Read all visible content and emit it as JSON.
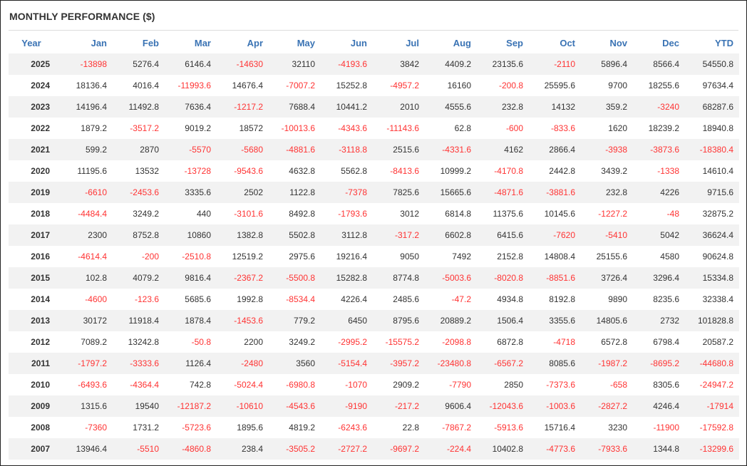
{
  "title": "MONTHLY PERFORMANCE ($)",
  "colors": {
    "header": "#3a73b4",
    "negative": "#ff3333",
    "positive": "#333333",
    "stripe": "#f2f2f2"
  },
  "columns": [
    "Year",
    "Jan",
    "Feb",
    "Mar",
    "Apr",
    "May",
    "Jun",
    "Jul",
    "Aug",
    "Sep",
    "Oct",
    "Nov",
    "Dec",
    "YTD"
  ],
  "rows": [
    [
      "2025",
      "-13898",
      "5276.4",
      "6146.4",
      "-14630",
      "32110",
      "-4193.6",
      "3842",
      "4409.2",
      "23135.6",
      "-2110",
      "5896.4",
      "8566.4",
      "54550.8"
    ],
    [
      "2024",
      "18136.4",
      "4016.4",
      "-11993.6",
      "14676.4",
      "-7007.2",
      "15252.8",
      "-4957.2",
      "16160",
      "-200.8",
      "25595.6",
      "9700",
      "18255.6",
      "97634.4"
    ],
    [
      "2023",
      "14196.4",
      "11492.8",
      "7636.4",
      "-1217.2",
      "7688.4",
      "10441.2",
      "2010",
      "4555.6",
      "232.8",
      "14132",
      "359.2",
      "-3240",
      "68287.6"
    ],
    [
      "2022",
      "1879.2",
      "-3517.2",
      "9019.2",
      "18572",
      "-10013.6",
      "-4343.6",
      "-11143.6",
      "62.8",
      "-600",
      "-833.6",
      "1620",
      "18239.2",
      "18940.8"
    ],
    [
      "2021",
      "599.2",
      "2870",
      "-5570",
      "-5680",
      "-4881.6",
      "-3118.8",
      "2515.6",
      "-4331.6",
      "4162",
      "2866.4",
      "-3938",
      "-3873.6",
      "-18380.4"
    ],
    [
      "2020",
      "11195.6",
      "13532",
      "-13728",
      "-9543.6",
      "4632.8",
      "5562.8",
      "-8413.6",
      "10999.2",
      "-4170.8",
      "2442.8",
      "3439.2",
      "-1338",
      "14610.4"
    ],
    [
      "2019",
      "-6610",
      "-2453.6",
      "3335.6",
      "2502",
      "1122.8",
      "-7378",
      "7825.6",
      "15665.6",
      "-4871.6",
      "-3881.6",
      "232.8",
      "4226",
      "9715.6"
    ],
    [
      "2018",
      "-4484.4",
      "3249.2",
      "440",
      "-3101.6",
      "8492.8",
      "-1793.6",
      "3012",
      "6814.8",
      "11375.6",
      "10145.6",
      "-1227.2",
      "-48",
      "32875.2"
    ],
    [
      "2017",
      "2300",
      "8752.8",
      "10860",
      "1382.8",
      "5502.8",
      "3112.8",
      "-317.2",
      "6602.8",
      "6415.6",
      "-7620",
      "-5410",
      "5042",
      "36624.4"
    ],
    [
      "2016",
      "-4614.4",
      "-200",
      "-2510.8",
      "12519.2",
      "2975.6",
      "19216.4",
      "9050",
      "7492",
      "2152.8",
      "14808.4",
      "25155.6",
      "4580",
      "90624.8"
    ],
    [
      "2015",
      "102.8",
      "4079.2",
      "9816.4",
      "-2367.2",
      "-5500.8",
      "15282.8",
      "8774.8",
      "-5003.6",
      "-8020.8",
      "-8851.6",
      "3726.4",
      "3296.4",
      "15334.8"
    ],
    [
      "2014",
      "-4600",
      "-123.6",
      "5685.6",
      "1992.8",
      "-8534.4",
      "4226.4",
      "2485.6",
      "-47.2",
      "4934.8",
      "8192.8",
      "9890",
      "8235.6",
      "32338.4"
    ],
    [
      "2013",
      "30172",
      "11918.4",
      "1878.4",
      "-1453.6",
      "779.2",
      "6450",
      "8795.6",
      "20889.2",
      "1506.4",
      "3355.6",
      "14805.6",
      "2732",
      "101828.8"
    ],
    [
      "2012",
      "7089.2",
      "13242.8",
      "-50.8",
      "2200",
      "3249.2",
      "-2995.2",
      "-15575.2",
      "-2098.8",
      "6872.8",
      "-4718",
      "6572.8",
      "6798.4",
      "20587.2"
    ],
    [
      "2011",
      "-1797.2",
      "-3333.6",
      "1126.4",
      "-2480",
      "3560",
      "-5154.4",
      "-3957.2",
      "-23480.8",
      "-6567.2",
      "8085.6",
      "-1987.2",
      "-8695.2",
      "-44680.8"
    ],
    [
      "2010",
      "-6493.6",
      "-4364.4",
      "742.8",
      "-5024.4",
      "-6980.8",
      "-1070",
      "2909.2",
      "-7790",
      "2850",
      "-7373.6",
      "-658",
      "8305.6",
      "-24947.2"
    ],
    [
      "2009",
      "1315.6",
      "19540",
      "-12187.2",
      "-10610",
      "-4543.6",
      "-9190",
      "-217.2",
      "9606.4",
      "-12043.6",
      "-1003.6",
      "-2827.2",
      "4246.4",
      "-17914"
    ],
    [
      "2008",
      "-7360",
      "1731.2",
      "-5723.6",
      "1895.6",
      "4819.2",
      "-6243.6",
      "22.8",
      "-7867.2",
      "-5913.6",
      "15716.4",
      "3230",
      "-11900",
      "-17592.8"
    ],
    [
      "2007",
      "13946.4",
      "-5510",
      "-4860.8",
      "238.4",
      "-3505.2",
      "-2727.2",
      "-9697.2",
      "-224.4",
      "10402.8",
      "-4773.6",
      "-7933.6",
      "1344.8",
      "-13299.6"
    ]
  ]
}
